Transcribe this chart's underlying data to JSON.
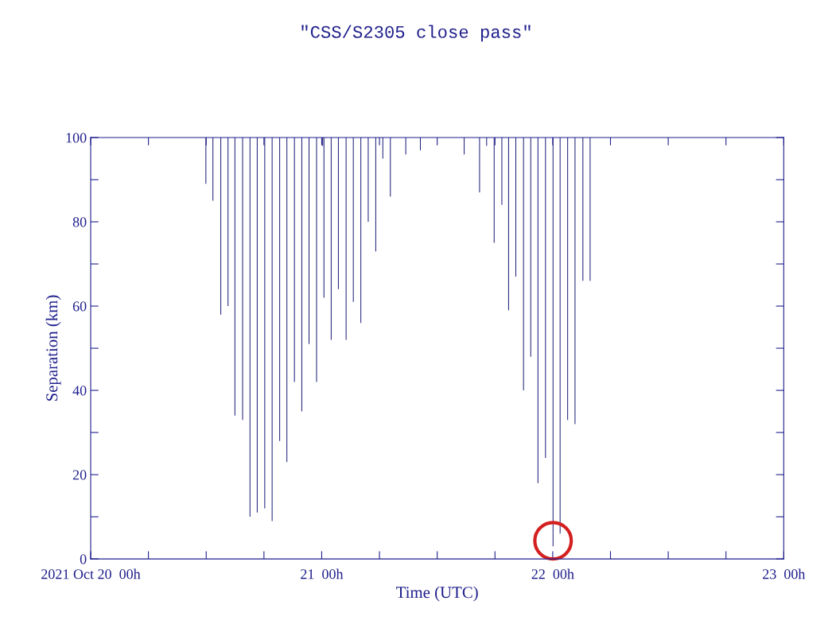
{
  "chart_data": {
    "type": "bar",
    "title": "\"CSS/S2305 close pass\"",
    "xlabel": "Time (UTC)",
    "ylabel": "Separation (km)",
    "x": [
      "2021-10-20T11:58",
      "2021-10-20T12:42",
      "2021-10-20T13:31",
      "2021-10-20T14:16",
      "2021-10-20T14:59",
      "2021-10-20T15:47",
      "2021-10-20T16:33",
      "2021-10-20T17:18",
      "2021-10-20T18:05",
      "2021-10-20T18:51",
      "2021-10-20T19:38",
      "2021-10-20T20:23",
      "2021-10-20T21:10",
      "2021-10-20T21:56",
      "2021-10-20T22:41",
      "2021-10-20T23:28",
      "2021-10-21T00:06",
      "2021-10-21T00:14",
      "2021-10-21T00:59",
      "2021-10-21T01:44",
      "2021-10-21T02:32",
      "2021-10-21T03:17",
      "2021-10-21T04:04",
      "2021-10-21T04:50",
      "2021-10-21T05:37",
      "2021-10-21T06:02",
      "2021-10-21T06:21",
      "2021-10-21T07:08",
      "2021-10-21T08:44",
      "2021-10-21T10:15",
      "2021-10-21T12:02",
      "2021-10-21T14:48",
      "2021-10-21T16:24",
      "2021-10-21T17:08",
      "2021-10-21T17:55",
      "2021-10-21T18:43",
      "2021-10-21T19:25",
      "2021-10-21T20:10",
      "2021-10-21T20:58",
      "2021-10-21T21:43",
      "2021-10-21T22:28",
      "2021-10-21T23:15",
      "2021-10-22T00:02",
      "2021-10-22T00:46",
      "2021-10-22T01:33",
      "2021-10-22T02:19",
      "2021-10-22T03:08",
      "2021-10-22T03:53"
    ],
    "base": [
      89,
      85,
      58,
      60,
      34,
      33,
      10,
      11,
      12,
      9,
      28,
      23,
      42,
      35,
      51,
      42,
      98,
      62,
      52,
      64,
      52,
      61,
      56,
      80,
      73,
      null,
      95,
      86,
      96,
      97,
      null,
      96,
      87,
      98,
      75,
      84,
      59,
      67,
      40,
      48,
      18,
      24,
      3,
      6,
      33,
      32,
      66,
      66
    ],
    "values": [
      11,
      15,
      42,
      40,
      66,
      67,
      90,
      89,
      88,
      91,
      72,
      77,
      58,
      65,
      49,
      58,
      2,
      38,
      48,
      36,
      48,
      39,
      44,
      20,
      27,
      null,
      5,
      14,
      4,
      3,
      null,
      4,
      13,
      2,
      25,
      16,
      41,
      33,
      60,
      52,
      82,
      76,
      97,
      94,
      67,
      68,
      34,
      34
    ],
    "color": "#1c1c78",
    "xlim": [
      "2021-10-20T00:00",
      "2021-10-23T00:00"
    ],
    "xticks": [
      {
        "value": "2021-10-20T00:00",
        "label": "2021 Oct 20  00h"
      },
      {
        "value": "2021-10-20T06:00",
        "label": null
      },
      {
        "value": "2021-10-20T12:00",
        "label": null
      },
      {
        "value": "2021-10-20T18:00",
        "label": null
      },
      {
        "value": "2021-10-21T00:00",
        "label": "21  00h"
      },
      {
        "value": "2021-10-21T06:00",
        "label": null
      },
      {
        "value": "2021-10-21T12:00",
        "label": null
      },
      {
        "value": "2021-10-21T18:00",
        "label": null
      },
      {
        "value": "2021-10-22T00:00",
        "label": "22  00h"
      },
      {
        "value": "2021-10-22T06:00",
        "label": null
      },
      {
        "value": "2021-10-22T12:00",
        "label": null
      },
      {
        "value": "2021-10-22T18:00",
        "label": null
      },
      {
        "value": "2021-10-23T00:00",
        "label": "23  00h"
      }
    ],
    "ylim": [
      0,
      100
    ],
    "yticks": [
      0,
      {
        "value": 10,
        "label": null
      },
      20,
      {
        "value": 30,
        "label": null
      },
      40,
      {
        "value": 50,
        "label": null
      },
      60,
      {
        "value": 70,
        "label": null
      },
      80,
      {
        "value": 90,
        "label": null
      },
      100
    ],
    "grid": false
  }
}
